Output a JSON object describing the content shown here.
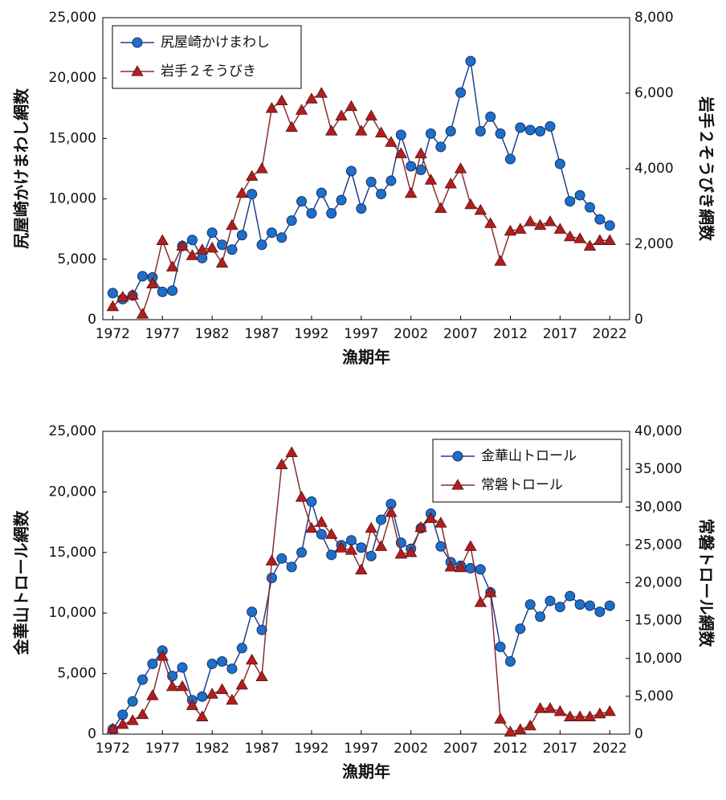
{
  "chart_data": [
    {
      "type": "line",
      "xlabel": "漁期年",
      "ylabel": "尻屋崎かけまわし網数",
      "y2label": "岩手２そうびき網数",
      "legend": "upper left",
      "xlim": [
        1971,
        2024
      ],
      "ylim": [
        0,
        25000
      ],
      "y2lim": [
        0,
        8000
      ],
      "xticks": [
        1972,
        1977,
        1982,
        1987,
        1992,
        1997,
        2002,
        2007,
        2012,
        2017,
        2022
      ],
      "yticks": [
        0,
        {
          "value": 5000,
          "label": "5,000"
        },
        {
          "value": 10000,
          "label": "10,000"
        },
        {
          "value": 15000,
          "label": "15,000"
        },
        {
          "value": 20000,
          "label": "20,000"
        },
        {
          "value": 25000,
          "label": "25,000"
        }
      ],
      "y2ticks": [
        0,
        {
          "value": 2000,
          "label": "2,000"
        },
        {
          "value": 4000,
          "label": "4,000"
        },
        {
          "value": 6000,
          "label": "6,000"
        },
        {
          "value": 8000,
          "label": "8,000"
        }
      ],
      "x": [
        1972,
        1973,
        1974,
        1975,
        1976,
        1977,
        1978,
        1979,
        1980,
        1981,
        1982,
        1983,
        1984,
        1985,
        1986,
        1987,
        1988,
        1989,
        1990,
        1991,
        1992,
        1993,
        1994,
        1995,
        1996,
        1997,
        1998,
        1999,
        2000,
        2001,
        2002,
        2003,
        2004,
        2005,
        2006,
        2007,
        2008,
        2009,
        2010,
        2011,
        2012,
        2013,
        2014,
        2015,
        2016,
        2017,
        2018,
        2019,
        2020,
        2021,
        2022
      ],
      "series": [
        {
          "name": "尻屋崎かけまわし",
          "color": "#1f3f8f",
          "marker_color": "#1e6fc8",
          "marker": "circle",
          "axis": "y",
          "values": [
            2200,
            1700,
            2000,
            3600,
            3500,
            2300,
            2400,
            6100,
            6600,
            5100,
            7200,
            6200,
            5800,
            7000,
            10400,
            6200,
            7200,
            6800,
            8200,
            9800,
            8800,
            10500,
            8800,
            9900,
            12300,
            9200,
            11400,
            10400,
            11500,
            15300,
            12700,
            12400,
            15400,
            14300,
            15600,
            18800,
            21400,
            15600,
            16800,
            15400,
            13300,
            15900,
            15700,
            15600,
            16000,
            12900,
            9800,
            10300,
            9300,
            8300,
            7800
          ]
        },
        {
          "name": "岩手２そうびき",
          "color": "#8b2d2d",
          "marker_color": "#b01e1e",
          "marker": "triangle",
          "axis": "y2",
          "values": [
            350,
            600,
            650,
            150,
            950,
            2100,
            1400,
            1950,
            1700,
            1850,
            1900,
            1500,
            2500,
            3350,
            3800,
            4000,
            5600,
            5800,
            5100,
            5550,
            5850,
            6000,
            5000,
            5400,
            5650,
            5000,
            5400,
            4950,
            4700,
            4400,
            3350,
            4400,
            3700,
            2950,
            3600,
            4000,
            3050,
            2900,
            2550,
            1550,
            2350,
            2400,
            2600,
            2500,
            2600,
            2400,
            2200,
            2150,
            1950,
            2100,
            2100
          ]
        }
      ]
    },
    {
      "type": "line",
      "xlabel": "漁期年",
      "ylabel": "金華山トロール網数",
      "y2label": "常磐トロール網数",
      "legend": "upper right",
      "xlim": [
        1971,
        2024
      ],
      "ylim": [
        0,
        25000
      ],
      "y2lim": [
        0,
        40000
      ],
      "xticks": [
        1972,
        1977,
        1982,
        1987,
        1992,
        1997,
        2002,
        2007,
        2012,
        2017,
        2022
      ],
      "yticks": [
        0,
        {
          "value": 5000,
          "label": "5,000"
        },
        {
          "value": 10000,
          "label": "10,000"
        },
        {
          "value": 15000,
          "label": "15,000"
        },
        {
          "value": 20000,
          "label": "20,000"
        },
        {
          "value": 25000,
          "label": "25,000"
        }
      ],
      "y2ticks": [
        0,
        {
          "value": 5000,
          "label": "5,000"
        },
        {
          "value": 10000,
          "label": "10,000"
        },
        {
          "value": 15000,
          "label": "15,000"
        },
        {
          "value": 20000,
          "label": "20,000"
        },
        {
          "value": 25000,
          "label": "25,000"
        },
        {
          "value": 30000,
          "label": "30,000"
        },
        {
          "value": 35000,
          "label": "35,000"
        },
        {
          "value": 40000,
          "label": "40,000"
        }
      ],
      "x": [
        1972,
        1973,
        1974,
        1975,
        1976,
        1977,
        1978,
        1979,
        1980,
        1981,
        1982,
        1983,
        1984,
        1985,
        1986,
        1987,
        1988,
        1989,
        1990,
        1991,
        1992,
        1993,
        1994,
        1995,
        1996,
        1997,
        1998,
        1999,
        2000,
        2001,
        2002,
        2003,
        2004,
        2005,
        2006,
        2007,
        2008,
        2009,
        2010,
        2011,
        2012,
        2013,
        2014,
        2015,
        2016,
        2017,
        2018,
        2019,
        2020,
        2021,
        2022
      ],
      "series": [
        {
          "name": "金華山トロール",
          "color": "#1f3f8f",
          "marker_color": "#1e6fc8",
          "marker": "circle",
          "axis": "y",
          "values": [
            400,
            1600,
            2700,
            4500,
            5800,
            6900,
            4800,
            5500,
            2800,
            3100,
            5800,
            6000,
            5400,
            7100,
            10100,
            8600,
            12900,
            14500,
            13800,
            15000,
            19200,
            16500,
            14800,
            15600,
            16000,
            15400,
            14700,
            17700,
            19000,
            15800,
            15300,
            17000,
            18200,
            15500,
            14200,
            13900,
            13700,
            13600,
            11700,
            7200,
            6000,
            8700,
            10700,
            9700,
            11000,
            10500,
            11400,
            10700,
            10600,
            10100,
            10600
          ]
        },
        {
          "name": "常磐トロール",
          "color": "#8b2d2d",
          "marker_color": "#b01e1e",
          "marker": "triangle",
          "axis": "y2",
          "values": [
            700,
            1300,
            1800,
            2600,
            5100,
            10300,
            6300,
            6300,
            3800,
            2300,
            5300,
            5900,
            4500,
            6500,
            9800,
            7600,
            22900,
            35600,
            37200,
            31300,
            27200,
            28000,
            26400,
            24600,
            24300,
            21700,
            27200,
            24800,
            29300,
            23800,
            24000,
            27300,
            28500,
            27900,
            22100,
            22000,
            24800,
            17400,
            18700,
            2000,
            300,
            600,
            1100,
            3400,
            3400,
            3000,
            2300,
            2300,
            2300,
            2700,
            3000
          ]
        }
      ]
    }
  ]
}
